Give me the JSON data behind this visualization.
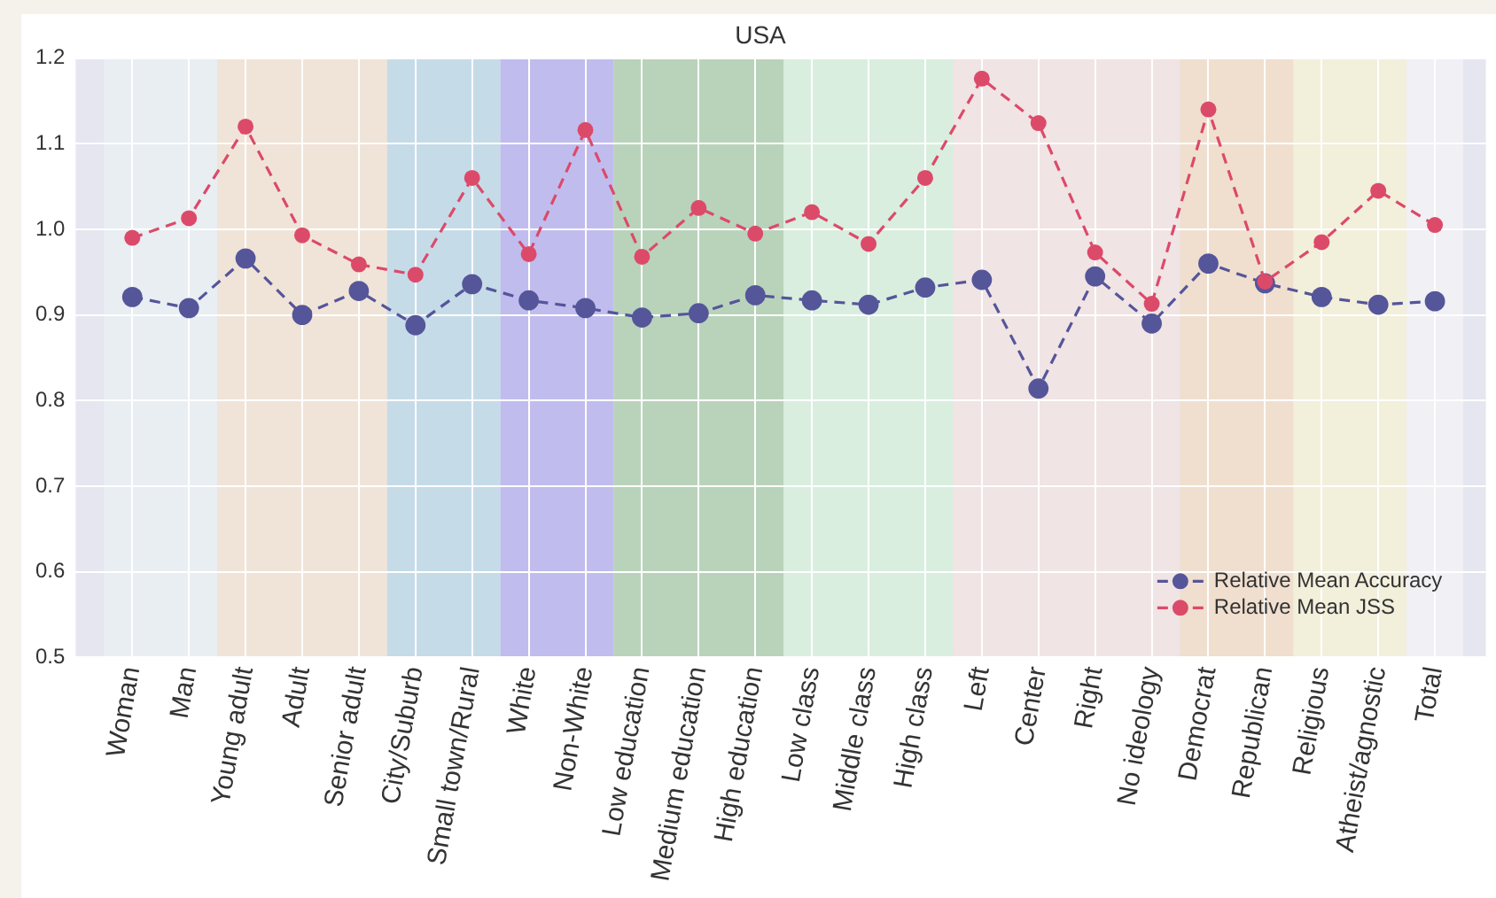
{
  "chart_data": {
    "type": "line",
    "title": "USA",
    "categories": [
      "Woman",
      "Man",
      "Young adult",
      "Adult",
      "Senior adult",
      "City/Suburb",
      "Small town/Rural",
      "White",
      "Non-White",
      "Low education",
      "Medium education",
      "High education",
      "Low class",
      "Middle class",
      "High class",
      "Left",
      "Center",
      "Right",
      "No ideology",
      "Democrat",
      "Republican",
      "Religious",
      "Atheist/agnostic",
      "Total"
    ],
    "series": [
      {
        "name": "Relative Mean Accuracy",
        "color": "#55559a",
        "values": [
          0.921,
          0.908,
          0.966,
          0.9,
          0.928,
          0.888,
          0.936,
          0.917,
          0.908,
          0.897,
          0.902,
          0.923,
          0.917,
          0.912,
          0.932,
          0.941,
          0.814,
          0.945,
          0.89,
          0.96,
          0.937,
          0.921,
          0.912,
          0.916
        ]
      },
      {
        "name": "Relative Mean JSS",
        "color": "#dc4a6a",
        "values": [
          0.99,
          1.013,
          1.12,
          0.993,
          0.959,
          0.947,
          1.06,
          0.971,
          1.116,
          0.968,
          1.025,
          0.995,
          1.02,
          0.983,
          1.06,
          1.176,
          1.124,
          0.973,
          0.913,
          1.14,
          0.939,
          0.985,
          1.045,
          1.005
        ]
      }
    ],
    "ylim": [
      0.5,
      1.2
    ],
    "yticks": [
      0.5,
      0.6,
      0.7,
      0.8,
      0.9,
      {
        "value": 1,
        "label": "1.0"
      },
      1.1,
      1.2
    ],
    "bands": [
      {
        "axis": "x",
        "from": "Woman",
        "to": "Man",
        "color": "#e8eef2"
      },
      {
        "axis": "x",
        "from": "Young adult",
        "to": "Senior adult",
        "color": "#f0e4d8"
      },
      {
        "axis": "x",
        "from": "City/Suburb",
        "to": "Small town/Rural",
        "color": "#c6dbe8"
      },
      {
        "axis": "x",
        "from": "White",
        "to": "Non-White",
        "color": "#c1bcee"
      },
      {
        "axis": "x",
        "from": "Low education",
        "to": "High education",
        "color": "#b9d3bb"
      },
      {
        "axis": "x",
        "from": "Low class",
        "to": "High class",
        "color": "#d9eedf"
      },
      {
        "axis": "x",
        "from": "Left",
        "to": "No ideology",
        "color": "#f0e4e4"
      },
      {
        "axis": "x",
        "from": "Democrat",
        "to": "Republican",
        "color": "#f0dfcf"
      },
      {
        "axis": "x",
        "from": "Religious",
        "to": "Atheist/agnostic",
        "color": "#f2efdb"
      },
      {
        "axis": "x",
        "from": "Total",
        "to": "Total",
        "color": "#f0f0f5"
      }
    ],
    "grid": true,
    "legend": "bottom right",
    "marker": "circle",
    "line_style": "dashed"
  }
}
